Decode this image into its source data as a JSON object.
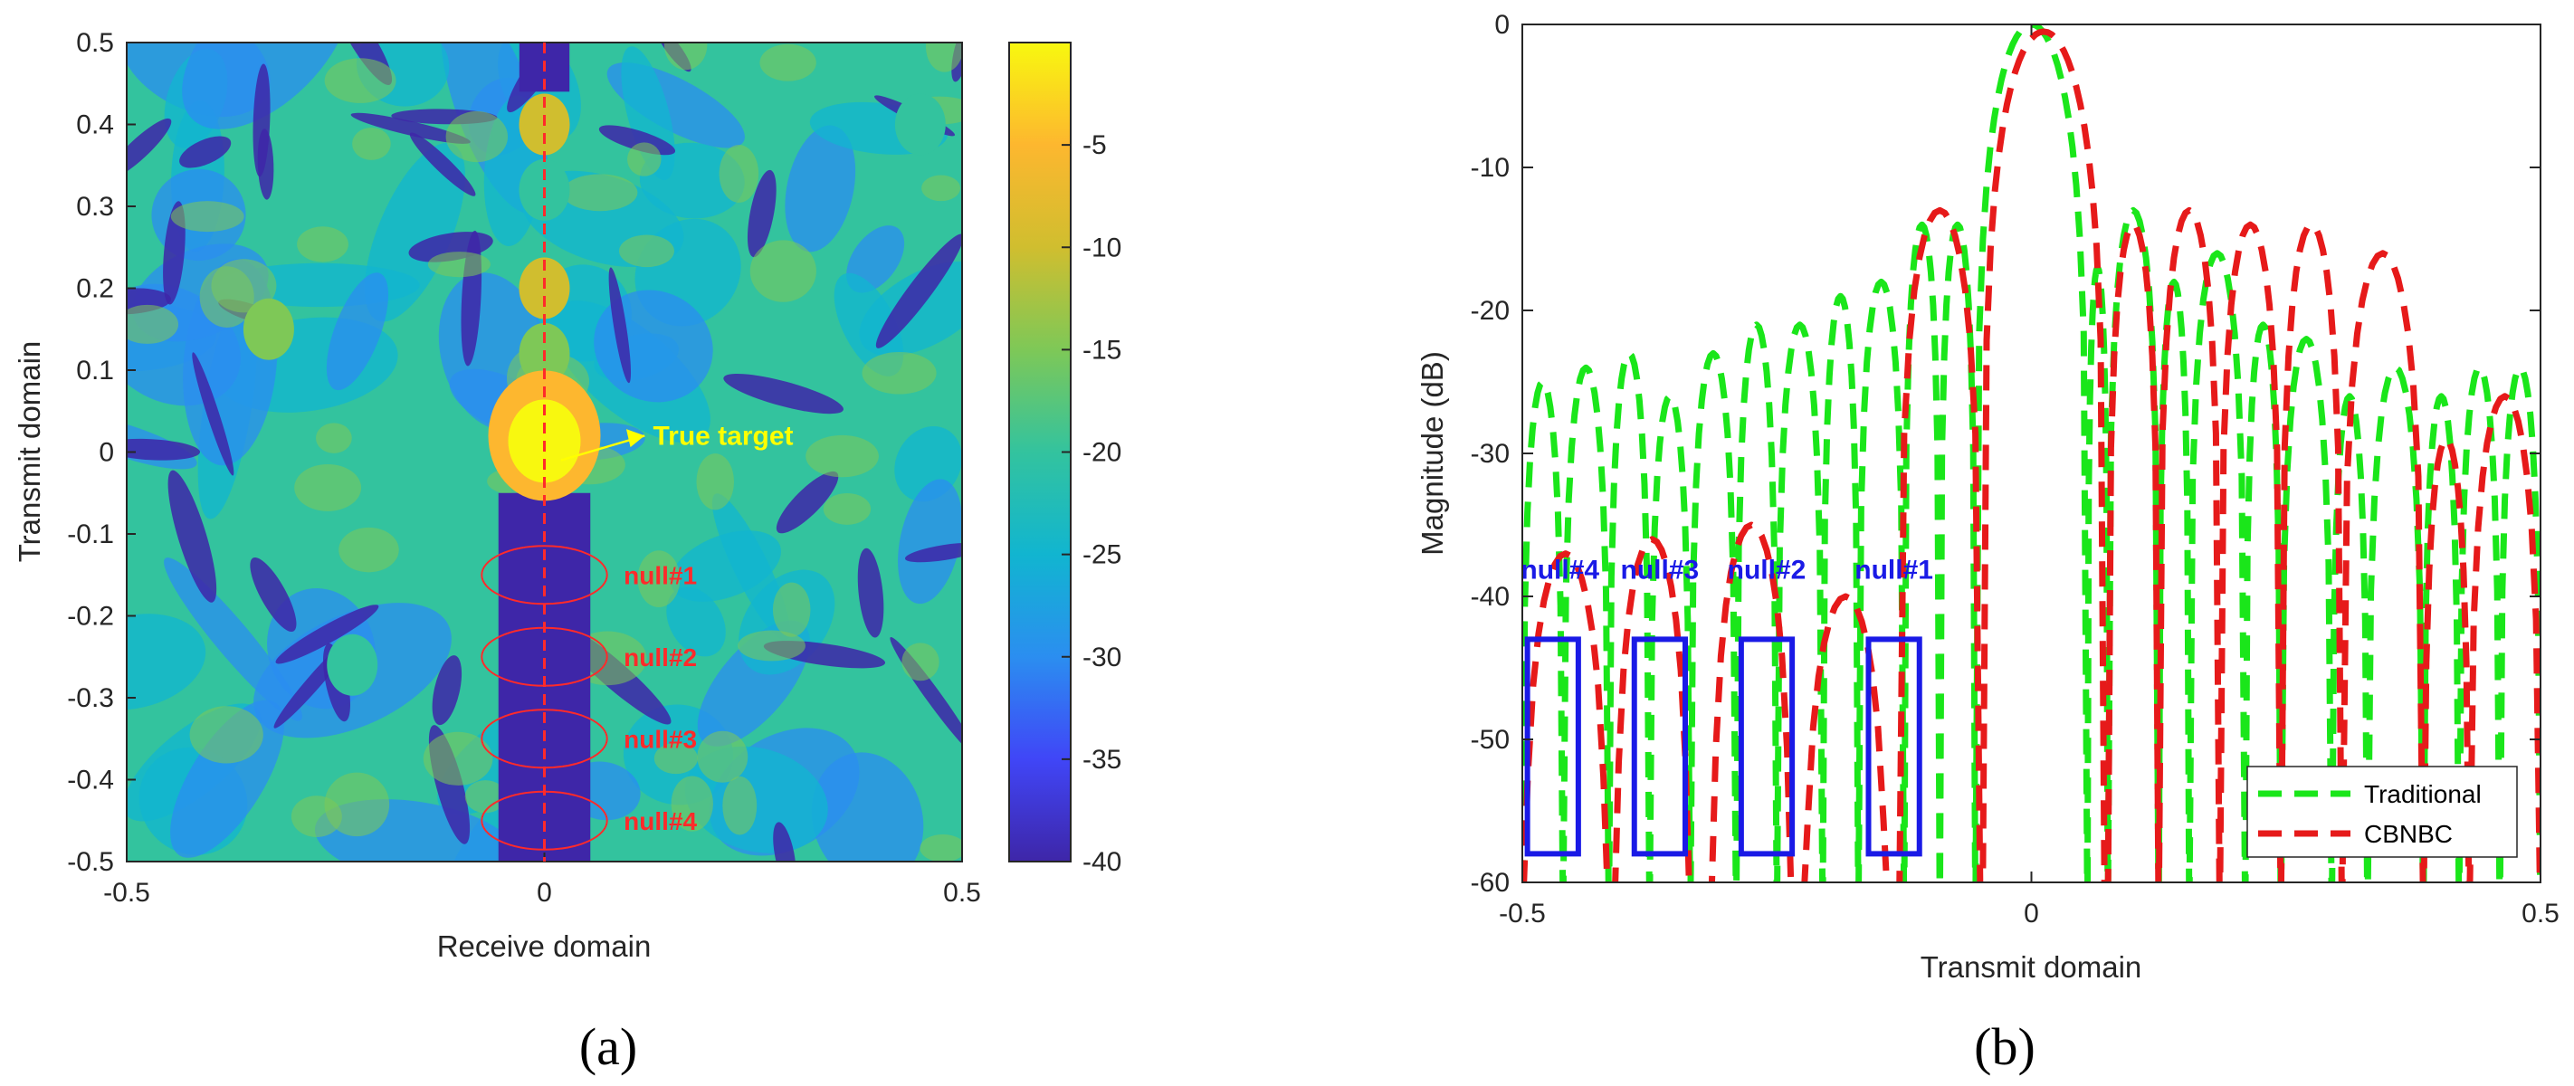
{
  "chart_data": [
    {
      "panel": "a",
      "type": "heatmap",
      "xlabel": "Receive domain",
      "ylabel": "Transmit domain",
      "xlim": [
        -0.5,
        0.5
      ],
      "ylim": [
        -0.5,
        0.5
      ],
      "x_ticks": [
        "-0.5",
        "0",
        "0.5"
      ],
      "y_ticks": [
        "0.5",
        "0.4",
        "0.3",
        "0.2",
        "0.1",
        "0",
        "-0.1",
        "-0.2",
        "-0.3",
        "-0.4",
        "-0.5"
      ],
      "colorbar": {
        "range": [
          -40,
          0
        ],
        "ticks": [
          "-5",
          "-10",
          "-15",
          "-20",
          "-25",
          "-30",
          "-35",
          "-40"
        ]
      },
      "peaks": [
        {
          "x": 0,
          "y": 0.4,
          "value": -12
        },
        {
          "x": 0,
          "y": 0.32,
          "value": -18
        },
        {
          "x": 0,
          "y": 0.2,
          "value": -12
        },
        {
          "x": 0,
          "y": 0.12,
          "value": -14
        },
        {
          "x": 0,
          "y": 0.02,
          "value": -2
        },
        {
          "x": -0.33,
          "y": 0.15,
          "value": -16
        },
        {
          "x": 0.45,
          "y": 0.4,
          "value": -18
        },
        {
          "x": -0.23,
          "y": -0.26,
          "value": -18
        }
      ],
      "annotations": {
        "target": "True target",
        "nulls": [
          {
            "label": "null#1",
            "y": -0.15
          },
          {
            "label": "null#2",
            "y": -0.25
          },
          {
            "label": "null#3",
            "y": -0.35
          },
          {
            "label": "null#4",
            "y": -0.45
          }
        ]
      }
    },
    {
      "panel": "b",
      "type": "line",
      "xlabel": "Transmit domain",
      "ylabel": "Magnitude (dB)",
      "xlim": [
        -0.5,
        0.5
      ],
      "ylim": [
        -60,
        0
      ],
      "x_ticks": [
        "-0.5",
        "0",
        "0.5"
      ],
      "y_ticks": [
        "0",
        "-10",
        "-20",
        "-30",
        "-40",
        "-50",
        "-60"
      ],
      "series": [
        {
          "name": "Traditional",
          "color": "#1ae61a",
          "style": "dashed",
          "main_lobe": {
            "center": 0,
            "half_width": 0.055,
            "peak": 0
          },
          "lobes": [
            [
              -0.5,
              -0.46,
              -25
            ],
            [
              -0.46,
              -0.415,
              -24
            ],
            [
              -0.415,
              -0.375,
              -23
            ],
            [
              -0.375,
              -0.335,
              -26
            ],
            [
              -0.335,
              -0.29,
              -23
            ],
            [
              -0.29,
              -0.25,
              -21
            ],
            [
              -0.25,
              -0.205,
              -21
            ],
            [
              -0.205,
              -0.17,
              -19
            ],
            [
              -0.17,
              -0.125,
              -18
            ],
            [
              -0.125,
              -0.09,
              -14
            ],
            [
              -0.09,
              -0.055,
              -14
            ],
            [
              0.055,
              0.075,
              -17
            ],
            [
              0.075,
              0.125,
              -13
            ],
            [
              0.125,
              0.155,
              -18
            ],
            [
              0.155,
              0.21,
              -16
            ],
            [
              0.21,
              0.245,
              -21
            ],
            [
              0.245,
              0.295,
              -22
            ],
            [
              0.295,
              0.33,
              -26
            ],
            [
              0.33,
              0.385,
              -24
            ],
            [
              0.385,
              0.42,
              -26
            ],
            [
              0.42,
              0.46,
              -24
            ],
            [
              0.46,
              0.5,
              -24
            ]
          ]
        },
        {
          "name": "CBNBC",
          "color": "#e61a1a",
          "style": "dashed",
          "main_lobe": {
            "center": 0.012,
            "half_width": 0.06,
            "peak": -0.5
          },
          "lobes": [
            [
              -0.5,
              -0.415,
              -37
            ],
            [
              -0.41,
              -0.335,
              -36
            ],
            [
              -0.315,
              -0.235,
              -35
            ],
            [
              -0.225,
              -0.14,
              -40
            ],
            [
              -0.13,
              -0.05,
              -13
            ],
            [
              0.075,
              0.125,
              -14
            ],
            [
              0.125,
              0.185,
              -13
            ],
            [
              0.185,
              0.245,
              -14
            ],
            [
              0.245,
              0.305,
              -14
            ],
            [
              0.305,
              0.385,
              -16
            ],
            [
              0.385,
              0.43,
              -29
            ],
            [
              0.43,
              0.5,
              -26
            ]
          ]
        }
      ],
      "annotations": {
        "nulls": [
          {
            "label": "null#4",
            "x_range": [
              -0.495,
              -0.445
            ],
            "y_range": [
              -43,
              -58
            ]
          },
          {
            "label": "null#3",
            "x_range": [
              -0.39,
              -0.34
            ],
            "y_range": [
              -43,
              -58
            ]
          },
          {
            "label": "null#2",
            "x_range": [
              -0.285,
              -0.235
            ],
            "y_range": [
              -43,
              -58
            ]
          },
          {
            "label": "null#1",
            "x_range": [
              -0.16,
              -0.11
            ],
            "y_range": [
              -43,
              -58
            ]
          }
        ]
      },
      "legend": {
        "placement": "bottom-right",
        "entries": [
          "Traditional",
          "CBNBC"
        ]
      }
    }
  ],
  "panel_labels": [
    "(a)",
    "(b)"
  ],
  "colors": {
    "colormap": [
      "#3e26a8",
      "#4046f7",
      "#2b8ef0",
      "#11b5d0",
      "#33c39e",
      "#7ec857",
      "#d0be2f",
      "#fdb72f",
      "#f8f80f"
    ],
    "traditional": "#1ae61a",
    "cbnbc": "#e61a1a",
    "null_box": "#1a1ae6",
    "annotation_red": "#ff2a2a",
    "annotation_yellow": "#ffff00"
  }
}
